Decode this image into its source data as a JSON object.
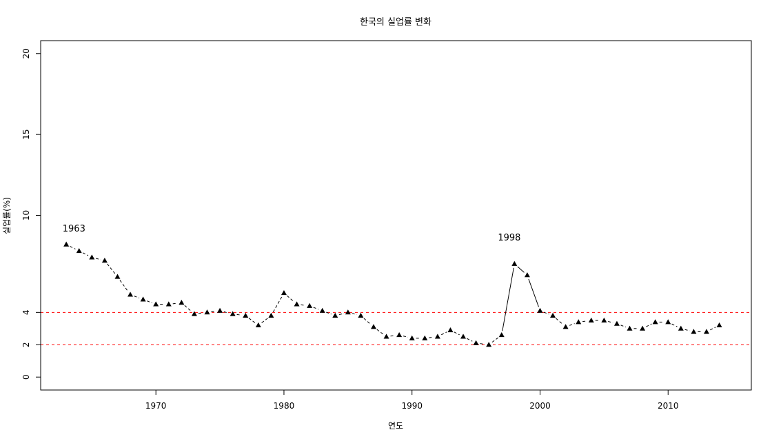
{
  "chart_data": {
    "type": "line",
    "title": "한국의 실업률 변화",
    "xlabel": "연도",
    "ylabel": "실업률(%)",
    "xlim": [
      1961.0,
      2016.5
    ],
    "ylim": [
      -0.8,
      20.8
    ],
    "x_ticks": [
      1970,
      1980,
      1990,
      2000,
      2010
    ],
    "y_ticks": [
      0,
      2,
      4,
      10,
      15,
      20
    ],
    "reference_lines": [
      4,
      2
    ],
    "reference_color": "#ff0000",
    "series": [
      {
        "name": "실업률",
        "x": [
          1963,
          1964,
          1965,
          1966,
          1967,
          1968,
          1969,
          1970,
          1971,
          1972,
          1973,
          1974,
          1975,
          1976,
          1977,
          1978,
          1979,
          1980,
          1981,
          1982,
          1983,
          1984,
          1985,
          1986,
          1987,
          1988,
          1989,
          1990,
          1991,
          1992,
          1993,
          1994,
          1995,
          1996,
          1997,
          1998,
          1999,
          2000,
          2001,
          2002,
          2003,
          2004,
          2005,
          2006,
          2007,
          2008,
          2009,
          2010,
          2011,
          2012,
          2013,
          2014
        ],
        "values": [
          8.2,
          7.8,
          7.4,
          7.2,
          6.2,
          5.1,
          4.8,
          4.5,
          4.5,
          4.6,
          3.9,
          4.0,
          4.1,
          3.9,
          3.8,
          3.2,
          3.8,
          5.2,
          4.5,
          4.4,
          4.1,
          3.8,
          4.0,
          3.8,
          3.1,
          2.5,
          2.6,
          2.4,
          2.4,
          2.5,
          2.9,
          2.5,
          2.1,
          2.0,
          2.6,
          7.0,
          6.3,
          4.1,
          3.8,
          3.1,
          3.4,
          3.5,
          3.5,
          3.3,
          3.0,
          3.0,
          3.4,
          3.4,
          3.0,
          2.8,
          2.8,
          3.2
        ],
        "segment_styles": [
          "dashed",
          "dashed",
          "dashed",
          "dashed",
          "dashed",
          "dashed",
          "dashed",
          "dashed",
          "dashed",
          "dashed",
          "dashed",
          "dashed",
          "dashed",
          "dashed",
          "dashed",
          "dashed",
          "dashed",
          "dashed",
          "dashed",
          "dashed",
          "dashed",
          "dashed",
          "dashed",
          "dashed",
          "dashed",
          "dashed",
          "dashed",
          "dashed",
          "dashed",
          "dashed",
          "dashed",
          "dashed",
          "dashed",
          "dashed",
          "solid",
          "solid",
          "solid",
          "dashed",
          "dashed",
          "dashed",
          "dashed",
          "dashed",
          "dashed",
          "dashed",
          "dashed",
          "dashed",
          "dashed",
          "dashed",
          "dashed",
          "dashed",
          "dashed"
        ]
      }
    ],
    "annotations": [
      {
        "text": "1963",
        "x": 1963.6,
        "y": 9.0
      },
      {
        "text": "1998",
        "x": 1997.6,
        "y": 8.45
      }
    ]
  }
}
